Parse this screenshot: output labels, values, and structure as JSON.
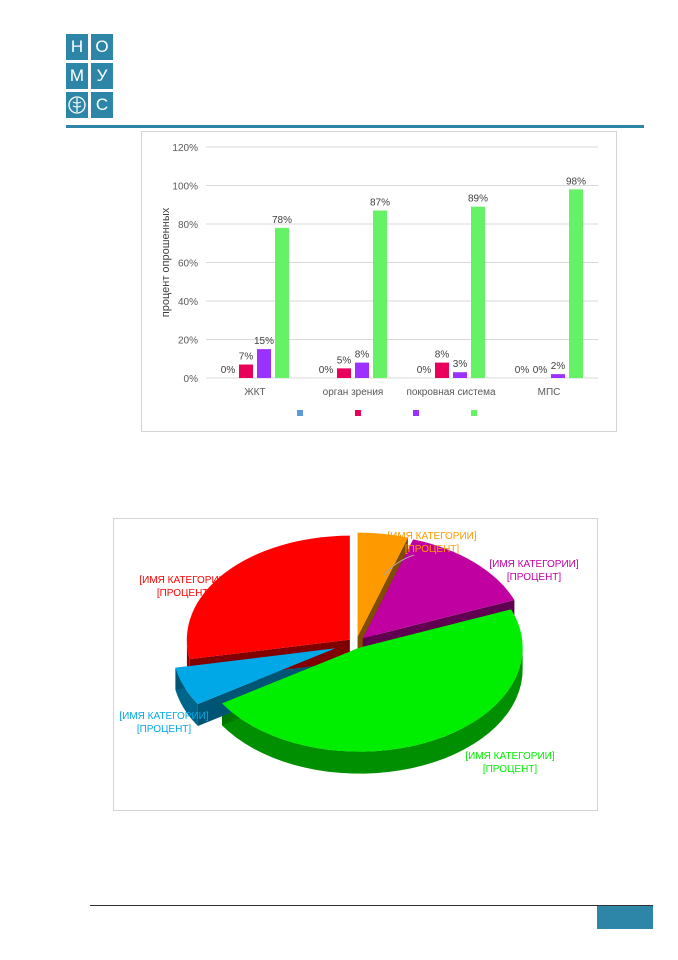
{
  "logo": {
    "letters": [
      "Н",
      "О",
      "М",
      "У",
      "С"
    ],
    "emblem_icon": "caduceus-emblem",
    "color": "#2d86a8"
  },
  "chart_data": [
    {
      "type": "bar",
      "categories": [
        "ЖКТ",
        "орган зрения",
        "покровная система",
        "МПС"
      ],
      "ylabel": "процент опрошенных",
      "yticks": [
        "0%",
        "20%",
        "40%",
        "60%",
        "80%",
        "100%",
        "120%"
      ],
      "ylim": [
        0,
        120
      ],
      "grid": true,
      "legend": "bottom",
      "series": [
        {
          "color": "#5b9bd5",
          "values": [
            0,
            0,
            0,
            0
          ],
          "labels": [
            "0%",
            "0%",
            "0%",
            "0%"
          ]
        },
        {
          "color": "#e8005a",
          "values": [
            7,
            5,
            8,
            0
          ],
          "labels": [
            "7%",
            "5%",
            "8%",
            "0%"
          ]
        },
        {
          "color": "#9b30ff",
          "values": [
            15,
            8,
            3,
            2
          ],
          "labels": [
            "15%",
            "8%",
            "3%",
            "2%"
          ]
        },
        {
          "color": "#66f266",
          "values": [
            78,
            87,
            89,
            98
          ],
          "labels": [
            "78%",
            "87%",
            "89%",
            "98%"
          ]
        }
      ]
    },
    {
      "type": "pie",
      "style": "3d-exploded",
      "slices": [
        {
          "label_line1": "[ИМЯ КАТЕГОРИИ]",
          "label_line2": "[ПРОЦЕНТ]",
          "value": 5,
          "color": "#ff9900"
        },
        {
          "label_line1": "[ИМЯ КАТЕГОРИИ]",
          "label_line2": "[ПРОЦЕНТ]",
          "value": 14,
          "color": "#c000a0"
        },
        {
          "label_line1": "[ИМЯ КАТЕГОРИИ]",
          "label_line2": "[ПРОЦЕНТ]",
          "value": 47,
          "color": "#00ee00"
        },
        {
          "label_line1": "[ИМЯ КАТЕГОРИИ]",
          "label_line2": "[ПРОЦЕНТ]",
          "value": 6,
          "color": "#00a8e8"
        },
        {
          "label_line1": "[ИМЯ КАТЕГОРИИ]",
          "label_line2": "[ПРОЦЕНТ]",
          "value": 28,
          "color": "#ff0000"
        }
      ]
    }
  ]
}
